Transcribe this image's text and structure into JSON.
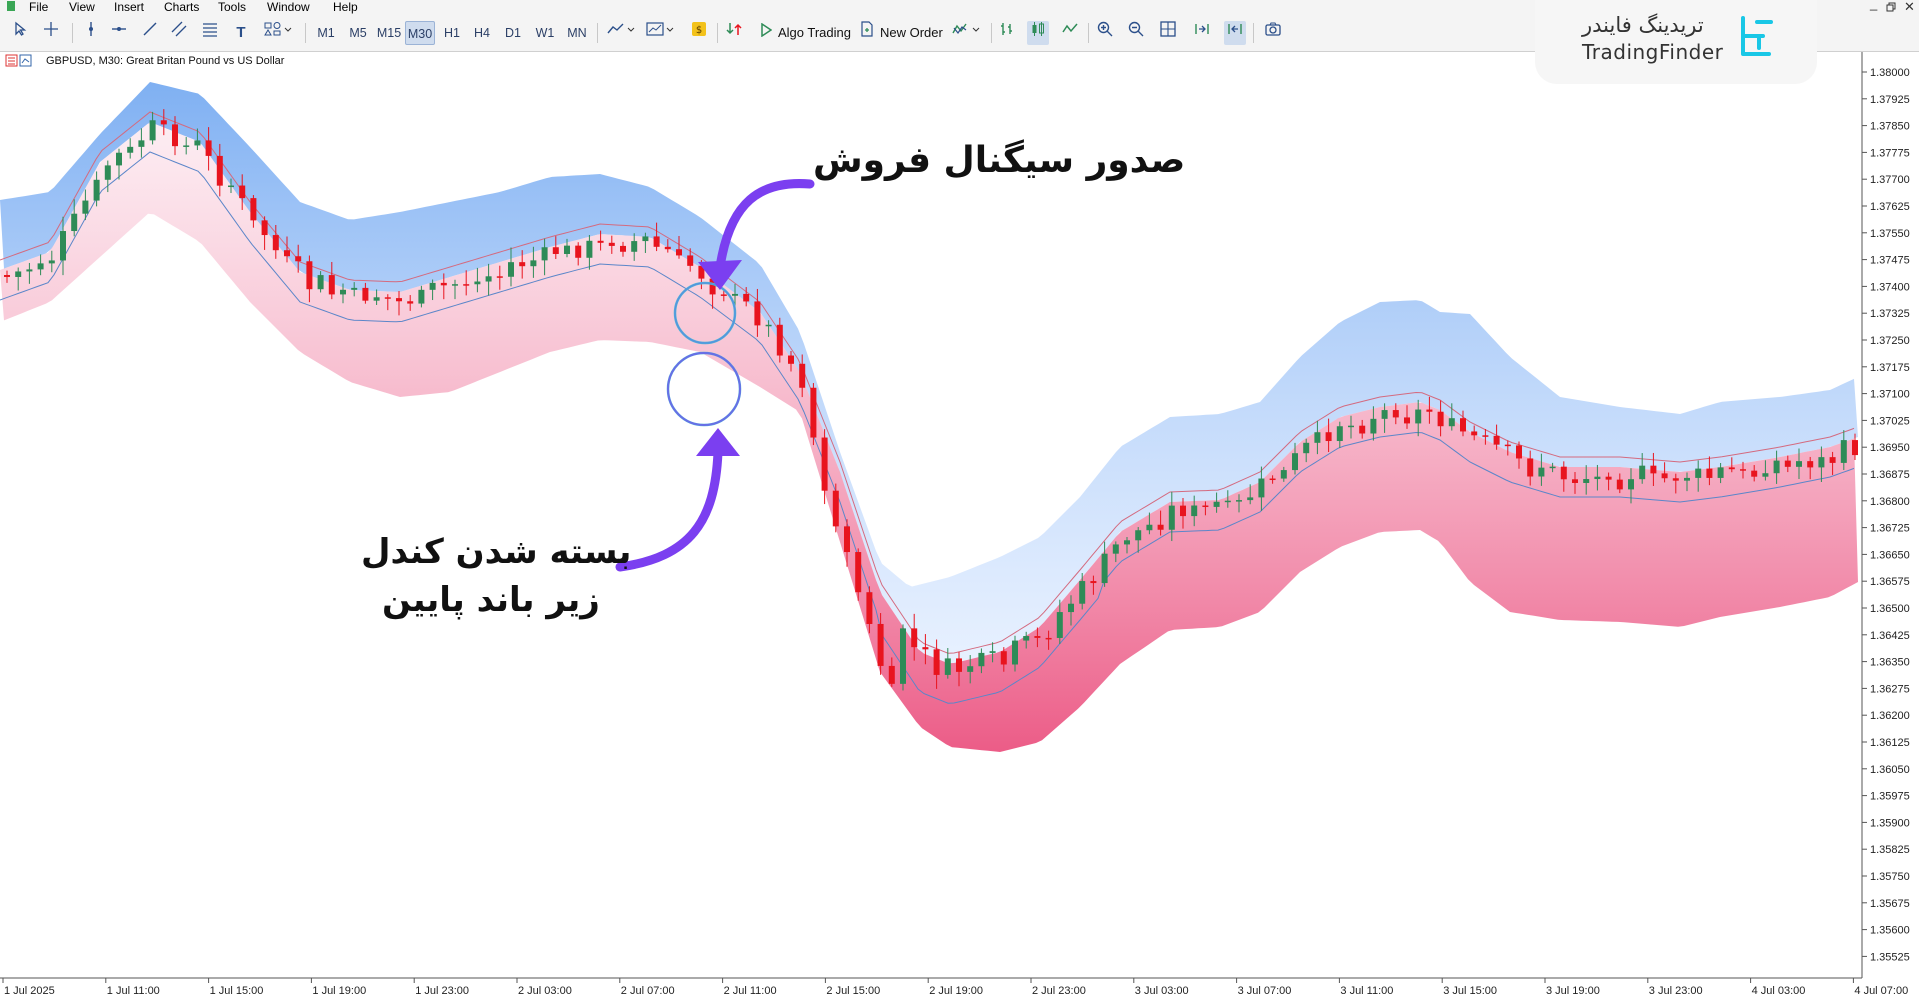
{
  "menu": [
    "File",
    "View",
    "Insert",
    "Charts",
    "Tools",
    "Window",
    "Help"
  ],
  "toolbar": {
    "timeframes": [
      "M1",
      "M5",
      "M15",
      "M30",
      "H1",
      "H4",
      "D1",
      "W1",
      "MN"
    ],
    "active_timeframe": "M30",
    "algo_trading_label": "Algo Trading",
    "new_order_label": "New Order"
  },
  "logo": {
    "persian": "تریدینگ فایندر",
    "latin": "TradingFinder"
  },
  "chart": {
    "symbol_line": "GBPUSD, M30:  Great Britan Pound vs US Dollar",
    "y_ticks": [
      "1.38000",
      "1.37925",
      "1.37850",
      "1.37775",
      "1.37700",
      "1.37625",
      "1.37550",
      "1.37475",
      "1.37400",
      "1.37325",
      "1.37250",
      "1.37175",
      "1.37100",
      "1.37025",
      "1.36950",
      "1.36875",
      "1.36800",
      "1.36725",
      "1.36650",
      "1.36575",
      "1.36500",
      "1.36425",
      "1.36350",
      "1.36275",
      "1.36200",
      "1.36125",
      "1.36050",
      "1.35975",
      "1.35900",
      "1.35825",
      "1.35750",
      "1.35675",
      "1.35600",
      "1.35525"
    ],
    "x_ticks": [
      "1 Jul 2025",
      "1 Jul 11:00",
      "1 Jul 15:00",
      "1 Jul 19:00",
      "1 Jul 23:00",
      "2 Jul 03:00",
      "2 Jul 07:00",
      "2 Jul 11:00",
      "2 Jul 15:00",
      "2 Jul 19:00",
      "2 Jul 23:00",
      "3 Jul 03:00",
      "3 Jul 07:00",
      "3 Jul 11:00",
      "3 Jul 15:00",
      "3 Jul 19:00",
      "3 Jul 23:00",
      "4 Jul 03:00",
      "4 Jul 07:00"
    ],
    "colors": {
      "bull": "#2e8b57",
      "bear": "#e8141e",
      "upper_band": "#7fb0f2",
      "lower_band": "#ec5c87",
      "annotation": "#7b3ff0",
      "circle": "#4bb3d8"
    }
  },
  "annotations": {
    "sell_signal": "صدور سیگنال فروش",
    "close_below_line1": "بسته شدن کندل",
    "close_below_line2": "زیر باند پایین"
  }
}
